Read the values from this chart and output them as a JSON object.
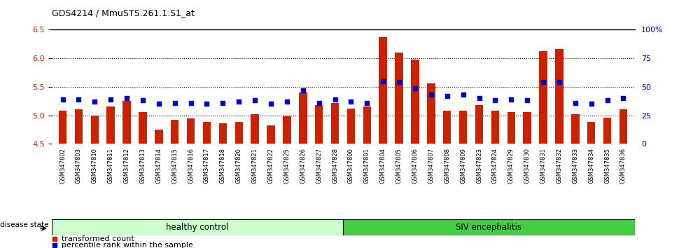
{
  "title": "GDS4214 / MmuSTS.261.1.S1_at",
  "samples": [
    "GSM347802",
    "GSM347803",
    "GSM347810",
    "GSM347811",
    "GSM347812",
    "GSM347813",
    "GSM347814",
    "GSM347815",
    "GSM347816",
    "GSM347817",
    "GSM347818",
    "GSM347820",
    "GSM347821",
    "GSM347822",
    "GSM347825",
    "GSM347826",
    "GSM347827",
    "GSM347828",
    "GSM347800",
    "GSM347801",
    "GSM347804",
    "GSM347805",
    "GSM347806",
    "GSM347807",
    "GSM347808",
    "GSM347809",
    "GSM347823",
    "GSM347824",
    "GSM347829",
    "GSM347830",
    "GSM347831",
    "GSM347832",
    "GSM347833",
    "GSM347834",
    "GSM347835",
    "GSM347836"
  ],
  "bar_values": [
    5.08,
    5.1,
    5.0,
    5.16,
    5.25,
    5.06,
    4.75,
    4.92,
    4.94,
    4.88,
    4.86,
    4.88,
    5.02,
    4.82,
    4.98,
    5.4,
    5.18,
    5.22,
    5.12,
    5.16,
    6.37,
    6.1,
    5.98,
    5.56,
    5.08,
    5.08,
    5.18,
    5.08,
    5.06,
    5.06,
    6.12,
    6.16,
    5.02,
    4.88,
    4.96,
    5.1
  ],
  "blue_values": [
    5.28,
    5.28,
    5.24,
    5.28,
    5.3,
    5.26,
    5.2,
    5.22,
    5.22,
    5.2,
    5.22,
    5.24,
    5.26,
    5.2,
    5.24,
    5.44,
    5.22,
    5.28,
    5.24,
    5.22,
    5.6,
    5.58,
    5.48,
    5.36,
    5.34,
    5.36,
    5.3,
    5.26,
    5.28,
    5.26,
    5.58,
    5.58,
    5.22,
    5.2,
    5.26,
    5.3
  ],
  "ylim_left": [
    4.5,
    6.5
  ],
  "ylim_right": [
    0,
    100
  ],
  "yticks_left": [
    4.5,
    5.0,
    5.5,
    6.0,
    6.5
  ],
  "yticks_right": [
    0,
    25,
    50,
    75,
    100
  ],
  "ytick_labels_right": [
    "0",
    "25",
    "50",
    "75",
    "100%"
  ],
  "grid_values": [
    5.0,
    5.5,
    6.0
  ],
  "healthy_count": 18,
  "bar_color": "#cc2200",
  "blue_color": "#0000cc",
  "healthy_color": "#ccffcc",
  "siv_color": "#44cc44",
  "legend_items": [
    "transformed count",
    "percentile rank within the sample"
  ]
}
